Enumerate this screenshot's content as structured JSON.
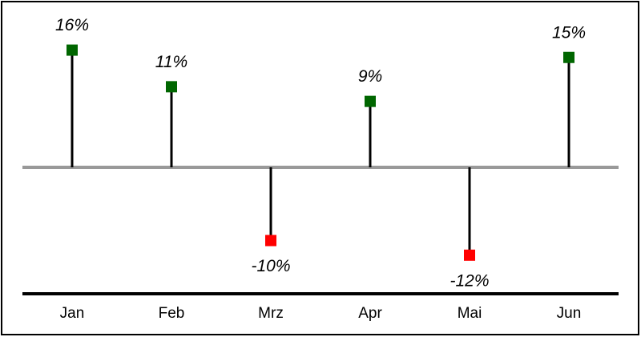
{
  "chart_data": {
    "type": "lollipop",
    "categories": [
      "Jan",
      "Feb",
      "Mrz",
      "Apr",
      "Mai",
      "Jun"
    ],
    "values": [
      16,
      11,
      -10,
      9,
      -12,
      15
    ],
    "value_labels": [
      "16%",
      "11%",
      "-10%",
      "9%",
      "-12%",
      "15%"
    ],
    "colors": {
      "positive": "#006600",
      "negative": "#ff0000"
    }
  }
}
